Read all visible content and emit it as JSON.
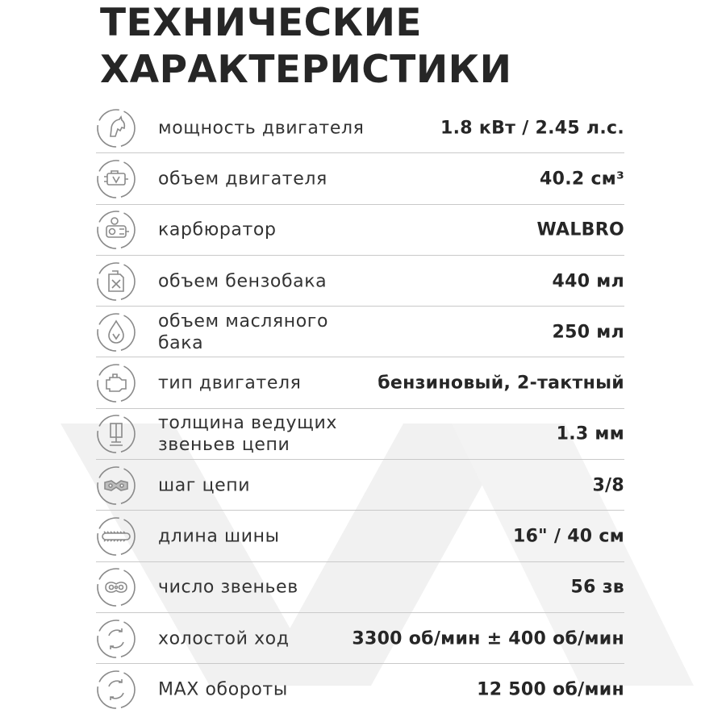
{
  "title": {
    "line1": "ТЕХНИЧЕСКИЕ",
    "line2": "ХАРАКТЕРИСТИКИ"
  },
  "colors": {
    "text": "#262626",
    "divider": "#c9c9c9",
    "icon": "#8a8a8a",
    "watermark": "#f1f1f1"
  },
  "specs": [
    {
      "icon": "horse-head-icon",
      "label": "мощность двигателя",
      "value": "1.8 кВт / 2.45 л.с."
    },
    {
      "icon": "engine-volume-icon",
      "label": "объем двигателя",
      "value": "40.2 см³"
    },
    {
      "icon": "carburetor-icon",
      "label": "карбюратор",
      "value": "WALBRO"
    },
    {
      "icon": "fuel-canister-icon",
      "label": "объем бензобака",
      "value": "440 мл"
    },
    {
      "icon": "oil-drop-icon",
      "label": "объем масляного бака",
      "value": "250 мл"
    },
    {
      "icon": "engine-icon",
      "label": "тип двигателя",
      "value": "бензиновый, 2-тактный"
    },
    {
      "icon": "chain-thickness-icon",
      "label": "толщина ведущих звеньев цепи",
      "value": "1.3 мм"
    },
    {
      "icon": "chain-pitch-icon",
      "label": "шаг цепи",
      "value": "3/8"
    },
    {
      "icon": "guide-bar-icon",
      "label": "длина шины",
      "value": "16\" / 40 см"
    },
    {
      "icon": "chain-links-icon",
      "label": "число звеньев",
      "value": "56 зв"
    },
    {
      "icon": "idle-rotation-icon",
      "label": "холостой ход",
      "value": "3300 об/мин ± 400 об/мин"
    },
    {
      "icon": "max-rotation-icon",
      "label": "MAX обороты",
      "value": "12 500 об/мин"
    }
  ]
}
